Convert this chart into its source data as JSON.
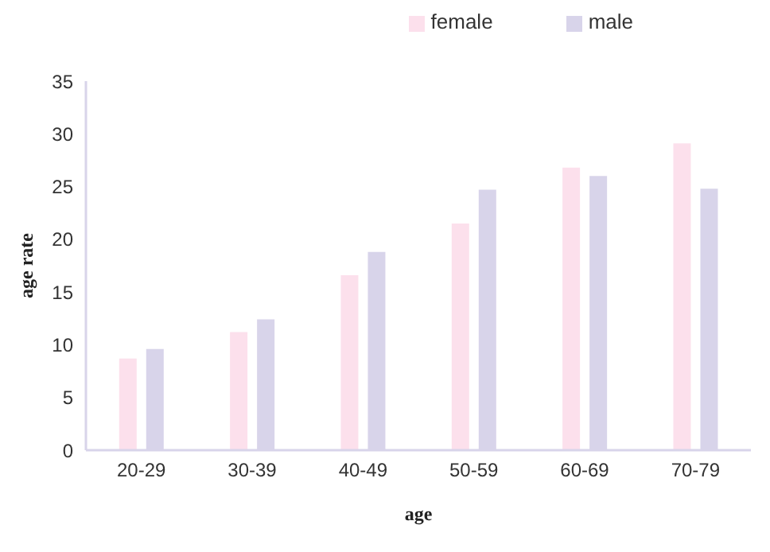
{
  "chart_data": {
    "type": "bar",
    "xlabel": "age",
    "ylabel": "age rate",
    "categories": [
      "20-29",
      "30-39",
      "40-49",
      "50-59",
      "60-69",
      "70-79"
    ],
    "series": [
      {
        "name": "female",
        "color": "#fce0ec",
        "values": [
          8.7,
          11.2,
          16.6,
          21.5,
          26.8,
          29.1
        ]
      },
      {
        "name": "male",
        "color": "#d8d4ea",
        "values": [
          9.6,
          12.4,
          18.8,
          24.7,
          26.0,
          24.8
        ]
      }
    ],
    "ylim": [
      0,
      35
    ],
    "yticks": [
      0,
      5,
      10,
      15,
      20,
      25,
      30,
      35
    ],
    "grid": false,
    "legend": "top right"
  }
}
